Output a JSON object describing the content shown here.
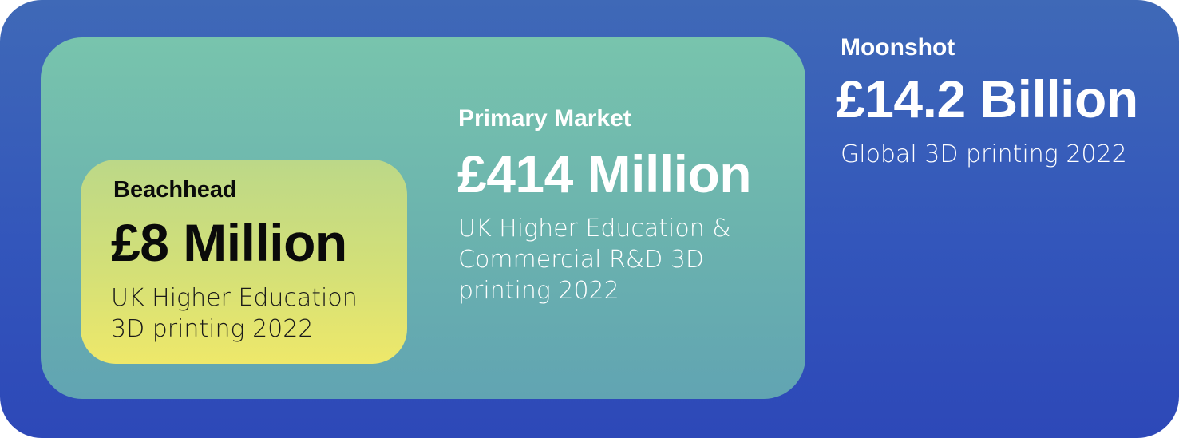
{
  "segments": {
    "beachhead": {
      "label": "Beachhead",
      "value": "£8 Million",
      "description": "UK Higher Education 3D printing 2022"
    },
    "primary": {
      "label": "Primary Market",
      "value": "£414 Million",
      "description": "UK Higher Education & Commercial R&D 3D printing 2022"
    },
    "moonshot": {
      "label": "Moonshot",
      "value": "£14.2 Billion",
      "description": "Global 3D printing 2022"
    }
  },
  "colors": {
    "outer_top": "#3f69b7",
    "outer_bottom": "#2d48b8",
    "primary_top": "#78c4ad",
    "primary_bottom": "#61a4b2",
    "beachhead_top": "#bcd888",
    "beachhead_bottom": "#eee86a"
  }
}
